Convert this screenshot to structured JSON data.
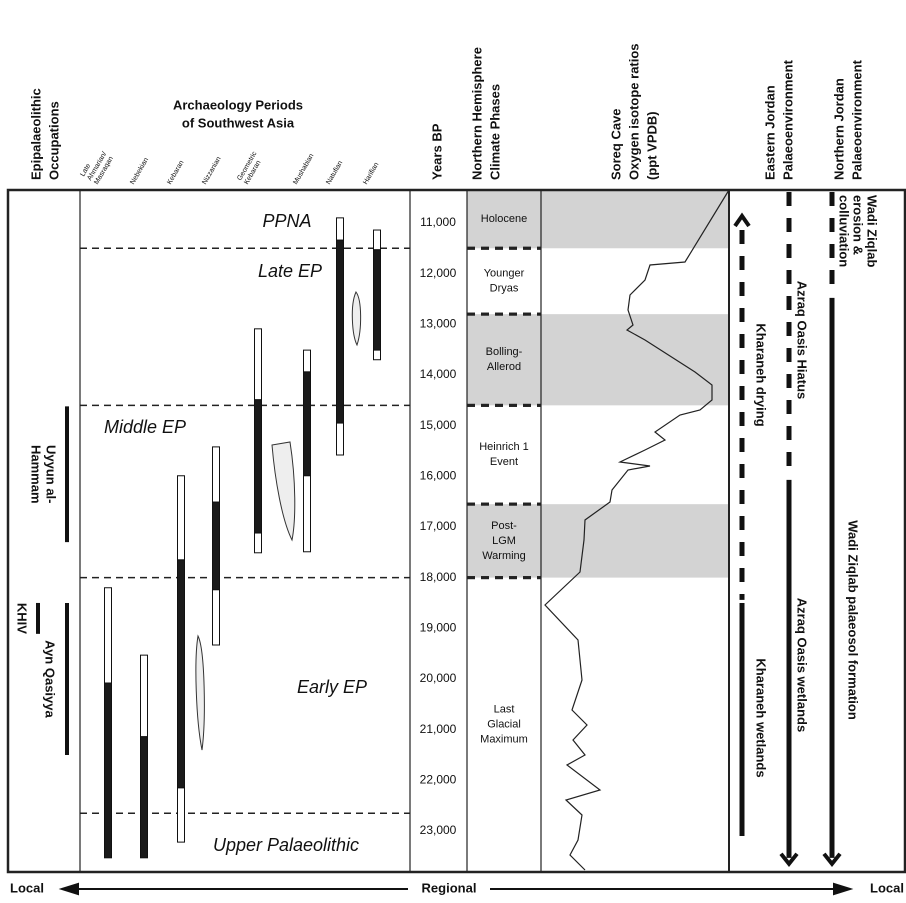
{
  "headers": {
    "occupations": [
      "Epipalaeolithic",
      "Occupations"
    ],
    "archaeology": [
      "Archaeology Periods",
      "of Southwest Asia"
    ],
    "years": "Years BP",
    "climate": [
      "Northern Hemisphere",
      "Climate Phases"
    ],
    "soreq": [
      "Soreq Cave",
      "Oxygen isotope ratios",
      "(ppt VPDB)"
    ],
    "eastern": [
      "Eastern Jordan",
      "Palaeoenvironment"
    ],
    "northern": [
      "Northern Jordan",
      "Palaeoenvironment"
    ]
  },
  "years_axis": {
    "range": [
      10350,
      23810
    ],
    "ticks": [
      {
        "value": 11000,
        "label": "11,000"
      },
      {
        "value": 12000,
        "label": "12,000"
      },
      {
        "value": 13000,
        "label": "13,000"
      },
      {
        "value": 14000,
        "label": "14,000"
      },
      {
        "value": 15000,
        "label": "15,000"
      },
      {
        "value": 16000,
        "label": "16,000"
      },
      {
        "value": 17000,
        "label": "17,000"
      },
      {
        "value": 18000,
        "label": "18,000"
      },
      {
        "value": 19000,
        "label": "19,000"
      },
      {
        "value": 20000,
        "label": "20,000"
      },
      {
        "value": 21000,
        "label": "21,000"
      },
      {
        "value": 22000,
        "label": "22,000"
      },
      {
        "value": 23000,
        "label": "23,000"
      }
    ]
  },
  "periods": [
    {
      "name": [
        "Late",
        "Ahmarian/",
        "Masraqan"
      ],
      "segments": [
        {
          "from": 18200,
          "to": 20080,
          "fill": "#ffffff"
        },
        {
          "from": 20080,
          "to": 23530,
          "fill": "#1a1a1a"
        }
      ]
    },
    {
      "name": [
        "Nebekian"
      ],
      "segments": [
        {
          "from": 19530,
          "to": 21140,
          "fill": "#ffffff"
        },
        {
          "from": 21140,
          "to": 23530,
          "fill": "#1a1a1a"
        }
      ]
    },
    {
      "name": [
        "Kebaran"
      ],
      "segments": [
        {
          "from": 15990,
          "to": 17650,
          "fill": "#ffffff"
        },
        {
          "from": 17650,
          "to": 22150,
          "fill": "#1a1a1a"
        },
        {
          "from": 22150,
          "to": 23220,
          "fill": "#ffffff"
        }
      ]
    },
    {
      "name": [
        "Nizzanian"
      ],
      "segments": [
        {
          "from": 15420,
          "to": 16510,
          "fill": "#ffffff"
        },
        {
          "from": 16510,
          "to": 18240,
          "fill": "#1a1a1a"
        },
        {
          "from": 18240,
          "to": 19330,
          "fill": "#ffffff"
        }
      ]
    },
    {
      "name": [
        "Geometric",
        "Kebaran"
      ],
      "segments": [
        {
          "from": 13090,
          "to": 14490,
          "fill": "#ffffff"
        },
        {
          "from": 14490,
          "to": 17120,
          "fill": "#1a1a1a"
        },
        {
          "from": 17120,
          "to": 17510,
          "fill": "#ffffff"
        }
      ]
    },
    {
      "name": [
        "Mushabian"
      ],
      "segments": [
        {
          "from": 13510,
          "to": 13940,
          "fill": "#ffffff"
        },
        {
          "from": 13940,
          "to": 15990,
          "fill": "#1a1a1a"
        },
        {
          "from": 15990,
          "to": 17490,
          "fill": "#ffffff"
        }
      ]
    },
    {
      "name": [
        "Natufian"
      ],
      "segments": [
        {
          "from": 10900,
          "to": 11340,
          "fill": "#ffffff"
        },
        {
          "from": 11340,
          "to": 14950,
          "fill": "#1a1a1a"
        },
        {
          "from": 14950,
          "to": 15580,
          "fill": "#ffffff"
        }
      ]
    },
    {
      "name": [
        "Harifian"
      ],
      "segments": [
        {
          "from": 11140,
          "to": 11530,
          "fill": "#ffffff"
        },
        {
          "from": 11530,
          "to": 13510,
          "fill": "#1a1a1a"
        },
        {
          "from": 13510,
          "to": 13700,
          "fill": "#ffffff"
        }
      ]
    }
  ],
  "eras": [
    "PPNA",
    "Late EP",
    "Middle EP",
    "Early EP",
    "Upper Palaeolithic"
  ],
  "era_boundaries": [
    11500,
    14600,
    18000,
    22650
  ],
  "climate_phases": [
    {
      "label": [
        "Holocene"
      ],
      "from": 10350,
      "to": 11500,
      "shaded": true
    },
    {
      "label": [
        "Younger",
        "Dryas"
      ],
      "from": 11500,
      "to": 12800,
      "shaded": false
    },
    {
      "label": [
        "Bolling-",
        "Allerod"
      ],
      "from": 12800,
      "to": 14600,
      "shaded": true
    },
    {
      "label": [
        "Heinrich 1",
        "Event"
      ],
      "from": 14600,
      "to": 16550,
      "shaded": false
    },
    {
      "label": [
        "Post-",
        "LGM",
        "Warming"
      ],
      "from": 16550,
      "to": 18000,
      "shaded": true
    },
    {
      "label": [
        "Last",
        "Glacial",
        "Maximum"
      ],
      "from": 18000,
      "to": 23810,
      "shaded": false
    }
  ],
  "occupations": [
    {
      "label": [
        "Uyyun al-",
        "Hammam"
      ],
      "from": 14620,
      "to": 17300
    },
    {
      "label": [
        "KHIV"
      ],
      "from": 18500,
      "to": 19110
    },
    {
      "label": [
        "Ayn Qasiyya"
      ],
      "from": 18500,
      "to": 21500
    }
  ],
  "environment": [
    {
      "labels": [
        [
          "Kharaneh drying"
        ],
        [
          "Kharaneh wetlands"
        ]
      ],
      "segments": [
        {
          "from": 11140,
          "to": 18440,
          "style": "dashed"
        },
        {
          "from": 18500,
          "to": 23100,
          "style": "solid"
        }
      ],
      "arrow": "up"
    },
    {
      "labels": [
        [
          "Azraq Oasis Hiatus"
        ],
        [
          "Azraq Oasis wetlands"
        ]
      ],
      "segments": [
        {
          "from": 10390,
          "to": 15880,
          "style": "dashed"
        },
        {
          "from": 16070,
          "to": 23530,
          "style": "solid"
        }
      ],
      "arrow": "down"
    },
    {
      "labels": [
        [
          "Wadi Ziqlab",
          "erosion &",
          "colluviation"
        ],
        [
          "Wadi Ziqlab palaeosol formation"
        ]
      ],
      "segments": [
        {
          "from": 10390,
          "to": 12220,
          "style": "dashed"
        },
        {
          "from": 12480,
          "to": 23530,
          "style": "solid"
        }
      ],
      "arrow": "down"
    }
  ],
  "footer": {
    "left": "Local",
    "center": "Regional",
    "right": "Local"
  }
}
